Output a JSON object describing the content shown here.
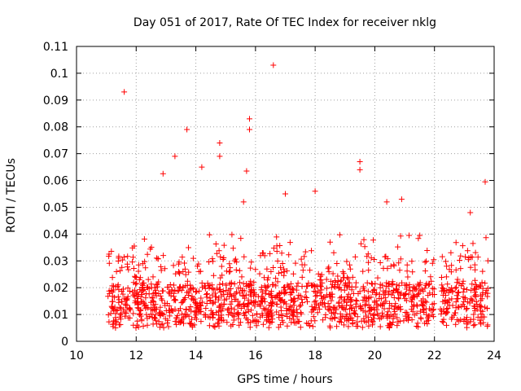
{
  "chart_data": {
    "type": "scatter",
    "title": "Day 051 of 2017, Rate Of TEC Index for receiver nklg",
    "xlabel": "GPS time / hours",
    "ylabel": "ROTI / TECUs",
    "xlim": [
      10,
      24
    ],
    "ylim": [
      0,
      0.11
    ],
    "xticks": [
      10,
      12,
      14,
      16,
      18,
      20,
      22,
      24
    ],
    "xtick_labels": [
      "10",
      "12",
      "14",
      "16",
      "18",
      "20",
      "22",
      "24"
    ],
    "yticks": [
      0,
      0.01,
      0.02,
      0.03,
      0.04,
      0.05,
      0.06,
      0.07,
      0.08,
      0.09,
      0.1,
      0.11
    ],
    "ytick_labels": [
      "0",
      "0.01",
      "0.02",
      "0.03",
      "0.04",
      "0.05",
      "0.06",
      "0.07",
      "0.08",
      "0.09",
      "0.1",
      "0.11"
    ],
    "grid": true,
    "marker": "+",
    "color": "#ff0000",
    "data_gap_hours": [
      22.0,
      22.2
    ],
    "notable_points": [
      {
        "x": 11.6,
        "y": 0.093
      },
      {
        "x": 12.9,
        "y": 0.0625
      },
      {
        "x": 13.3,
        "y": 0.069
      },
      {
        "x": 13.7,
        "y": 0.079
      },
      {
        "x": 14.2,
        "y": 0.065
      },
      {
        "x": 14.8,
        "y": 0.074
      },
      {
        "x": 14.8,
        "y": 0.069
      },
      {
        "x": 15.7,
        "y": 0.0635
      },
      {
        "x": 15.8,
        "y": 0.083
      },
      {
        "x": 15.8,
        "y": 0.079
      },
      {
        "x": 15.6,
        "y": 0.052
      },
      {
        "x": 16.6,
        "y": 0.103
      },
      {
        "x": 17.0,
        "y": 0.055
      },
      {
        "x": 18.0,
        "y": 0.056
      },
      {
        "x": 19.5,
        "y": 0.067
      },
      {
        "x": 19.5,
        "y": 0.064
      },
      {
        "x": 20.4,
        "y": 0.052
      },
      {
        "x": 20.9,
        "y": 0.053
      },
      {
        "x": 23.2,
        "y": 0.048
      },
      {
        "x": 23.7,
        "y": 0.0595
      }
    ]
  },
  "style": {
    "point_color": "#ff0000",
    "grid_color": "#a0a0a0",
    "axis_color": "#000000"
  }
}
